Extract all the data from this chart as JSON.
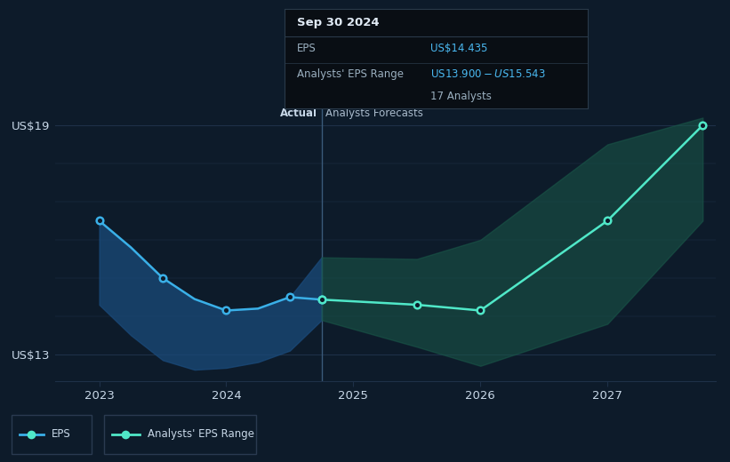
{
  "bg_color": "#0d1b2a",
  "grid_color": "#1e3048",
  "text_color": "#c8d8e8",
  "divider_label_color": "#aabbcc",
  "ylim": [
    12.3,
    19.8
  ],
  "xlim_num": [
    2022.65,
    2027.85
  ],
  "yticks": [
    13,
    19
  ],
  "ytick_labels": [
    "US$13",
    "US$19"
  ],
  "xticks": [
    2023,
    2024,
    2025,
    2026,
    2027
  ],
  "xtick_labels": [
    "2023",
    "2024",
    "2025",
    "2026",
    "2027"
  ],
  "divider_x": 2024.75,
  "actual_label": "Actual",
  "forecast_label": "Analysts Forecasts",
  "eps_x": [
    2023.0,
    2023.25,
    2023.5,
    2023.75,
    2024.0,
    2024.25,
    2024.5,
    2024.75
  ],
  "eps_y": [
    16.5,
    15.8,
    15.0,
    14.45,
    14.15,
    14.2,
    14.5,
    14.435
  ],
  "eps_markers": [
    0,
    2,
    4,
    6,
    7
  ],
  "actual_band_upper": [
    16.5,
    15.8,
    15.0,
    14.45,
    14.15,
    14.2,
    14.5,
    15.543
  ],
  "actual_band_lower": [
    14.3,
    13.5,
    12.85,
    12.6,
    12.65,
    12.8,
    13.1,
    13.9
  ],
  "actual_band_color": "#1a4a7a",
  "actual_band_alpha": 0.75,
  "forecast_x": [
    2024.75,
    2025.5,
    2026.0,
    2027.0,
    2027.75
  ],
  "forecast_y": [
    14.435,
    14.3,
    14.15,
    16.5,
    19.0
  ],
  "forecast_markers": [
    0,
    1,
    2,
    3,
    4
  ],
  "forecast_upper": [
    15.543,
    15.5,
    16.0,
    18.5,
    19.2
  ],
  "forecast_lower": [
    13.9,
    13.2,
    12.7,
    13.8,
    16.5
  ],
  "forecast_line_color": "#50e8c8",
  "forecast_band_color": "#1a5a4a",
  "forecast_band_alpha": 0.55,
  "eps_color": "#3ab0e8",
  "tooltip_bg": "#090e14",
  "tooltip_border": "#2a3a4a",
  "tooltip_title": "Sep 30 2024",
  "tooltip_eps_label": "EPS",
  "tooltip_eps_value": "US$14.435",
  "tooltip_range_label": "Analysts' EPS Range",
  "tooltip_range_value": "US$13.900 - US$15.543",
  "tooltip_analysts": "17 Analysts",
  "tooltip_value_color": "#4ab8f0",
  "legend_eps_label": "EPS",
  "legend_range_label": "Analysts' EPS Range",
  "legend_border_color": "#2a3a50",
  "legend_bg": "#0d1b2a"
}
